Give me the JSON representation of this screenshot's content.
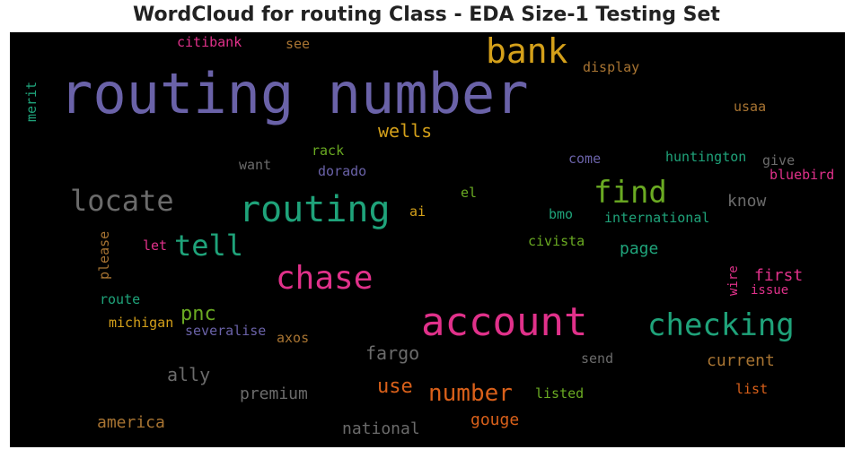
{
  "title": "WordCloud for routing Class - EDA Size-1 Testing Set",
  "words": [
    {
      "text": "routing number",
      "color": "#6a62a8"
    },
    {
      "text": "bank",
      "color": "#d4a01a"
    },
    {
      "text": "account",
      "color": "#e0318a"
    },
    {
      "text": "routing",
      "color": "#1fa37a"
    },
    {
      "text": "chase",
      "color": "#e0318a"
    },
    {
      "text": "checking",
      "color": "#1fa37a"
    },
    {
      "text": "find",
      "color": "#6aaa22"
    },
    {
      "text": "locate",
      "color": "#6b6b6b"
    },
    {
      "text": "tell",
      "color": "#1fa37a"
    },
    {
      "text": "number",
      "color": "#d9601a"
    },
    {
      "text": "wells",
      "color": "#d4a01a"
    },
    {
      "text": "citibank",
      "color": "#e0318a"
    },
    {
      "text": "see",
      "color": "#a87432"
    },
    {
      "text": "display",
      "color": "#a87432"
    },
    {
      "text": "merit",
      "color": "#1fa37a"
    },
    {
      "text": "usaa",
      "color": "#a87432"
    },
    {
      "text": "rack",
      "color": "#6aaa22"
    },
    {
      "text": "want",
      "color": "#6b6b6b"
    },
    {
      "text": "dorado",
      "color": "#6a62a8"
    },
    {
      "text": "come",
      "color": "#6a62a8"
    },
    {
      "text": "huntington",
      "color": "#1fa37a"
    },
    {
      "text": "give",
      "color": "#6b6b6b"
    },
    {
      "text": "bluebird",
      "color": "#e0318a"
    },
    {
      "text": "know",
      "color": "#6b6b6b"
    },
    {
      "text": "el",
      "color": "#6aaa22"
    },
    {
      "text": "ai",
      "color": "#d4a01a"
    },
    {
      "text": "bmo",
      "color": "#1fa37a"
    },
    {
      "text": "international",
      "color": "#1fa37a"
    },
    {
      "text": "please",
      "color": "#a87432"
    },
    {
      "text": "let",
      "color": "#e0318a"
    },
    {
      "text": "civista",
      "color": "#6aaa22"
    },
    {
      "text": "page",
      "color": "#1fa37a"
    },
    {
      "text": "first",
      "color": "#e0318a"
    },
    {
      "text": "wire",
      "color": "#e0318a"
    },
    {
      "text": "issue",
      "color": "#e0318a"
    },
    {
      "text": "route",
      "color": "#1fa37a"
    },
    {
      "text": "pnc",
      "color": "#6aaa22"
    },
    {
      "text": "michigan",
      "color": "#d4a01a"
    },
    {
      "text": "severalise",
      "color": "#6a62a8"
    },
    {
      "text": "axos",
      "color": "#a87432"
    },
    {
      "text": "fargo",
      "color": "#6b6b6b"
    },
    {
      "text": "ally",
      "color": "#6b6b6b"
    },
    {
      "text": "send",
      "color": "#6b6b6b"
    },
    {
      "text": "current",
      "color": "#a87432"
    },
    {
      "text": "premium",
      "color": "#6b6b6b"
    },
    {
      "text": "use",
      "color": "#d9601a"
    },
    {
      "text": "listed",
      "color": "#6aaa22"
    },
    {
      "text": "list",
      "color": "#d9601a"
    },
    {
      "text": "america",
      "color": "#a87432"
    },
    {
      "text": "national",
      "color": "#6b6b6b"
    },
    {
      "text": "gouge",
      "color": "#d9601a"
    }
  ]
}
